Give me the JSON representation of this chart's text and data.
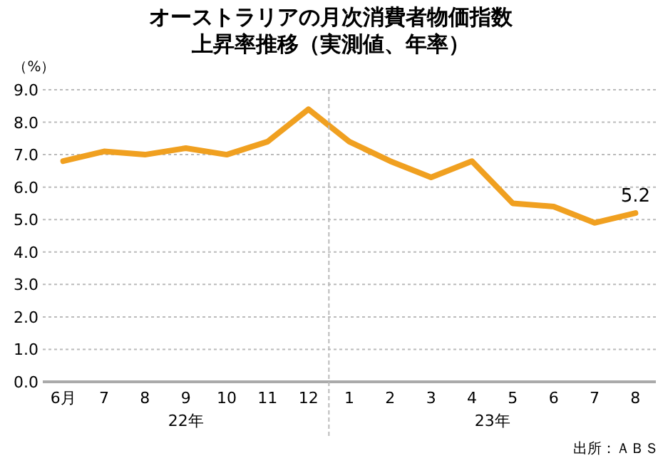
{
  "chart_data": {
    "type": "line",
    "title": "オーストラリアの月次消費者物価指数",
    "subtitle": "上昇率推移（実測値、年率）",
    "ylabel": "（%）",
    "categories": [
      "6月",
      "7",
      "8",
      "9",
      "10",
      "11",
      "12",
      "1",
      "2",
      "3",
      "4",
      "5",
      "6",
      "7",
      "8"
    ],
    "series": [
      {
        "color": "#f0a020",
        "values": [
          6.8,
          7.1,
          7.0,
          7.2,
          7.0,
          7.4,
          8.4,
          7.4,
          6.8,
          6.3,
          6.8,
          5.5,
          5.4,
          4.9,
          5.2
        ],
        "value_labels": [
          null,
          null,
          null,
          null,
          null,
          null,
          null,
          null,
          null,
          null,
          null,
          null,
          null,
          null,
          "5.2"
        ]
      }
    ],
    "ylim": [
      0,
      9
    ],
    "yticks": [
      {
        "value": 0,
        "label": "0.0"
      },
      {
        "value": 1,
        "label": "1.0"
      },
      {
        "value": 2,
        "label": "2.0"
      },
      {
        "value": 3,
        "label": "3.0"
      },
      {
        "value": 4,
        "label": "4.0"
      },
      {
        "value": 5,
        "label": "5.0"
      },
      {
        "value": 6,
        "label": "6.0"
      },
      {
        "value": 7,
        "label": "7.0"
      },
      {
        "value": 8,
        "label": "8.0"
      },
      {
        "value": 9,
        "label": "9.0"
      }
    ],
    "grid": "y",
    "marker": "none",
    "line_style": "solid",
    "annotations": [
      "22年",
      "23年",
      "出所：ＡＢＳ"
    ]
  }
}
